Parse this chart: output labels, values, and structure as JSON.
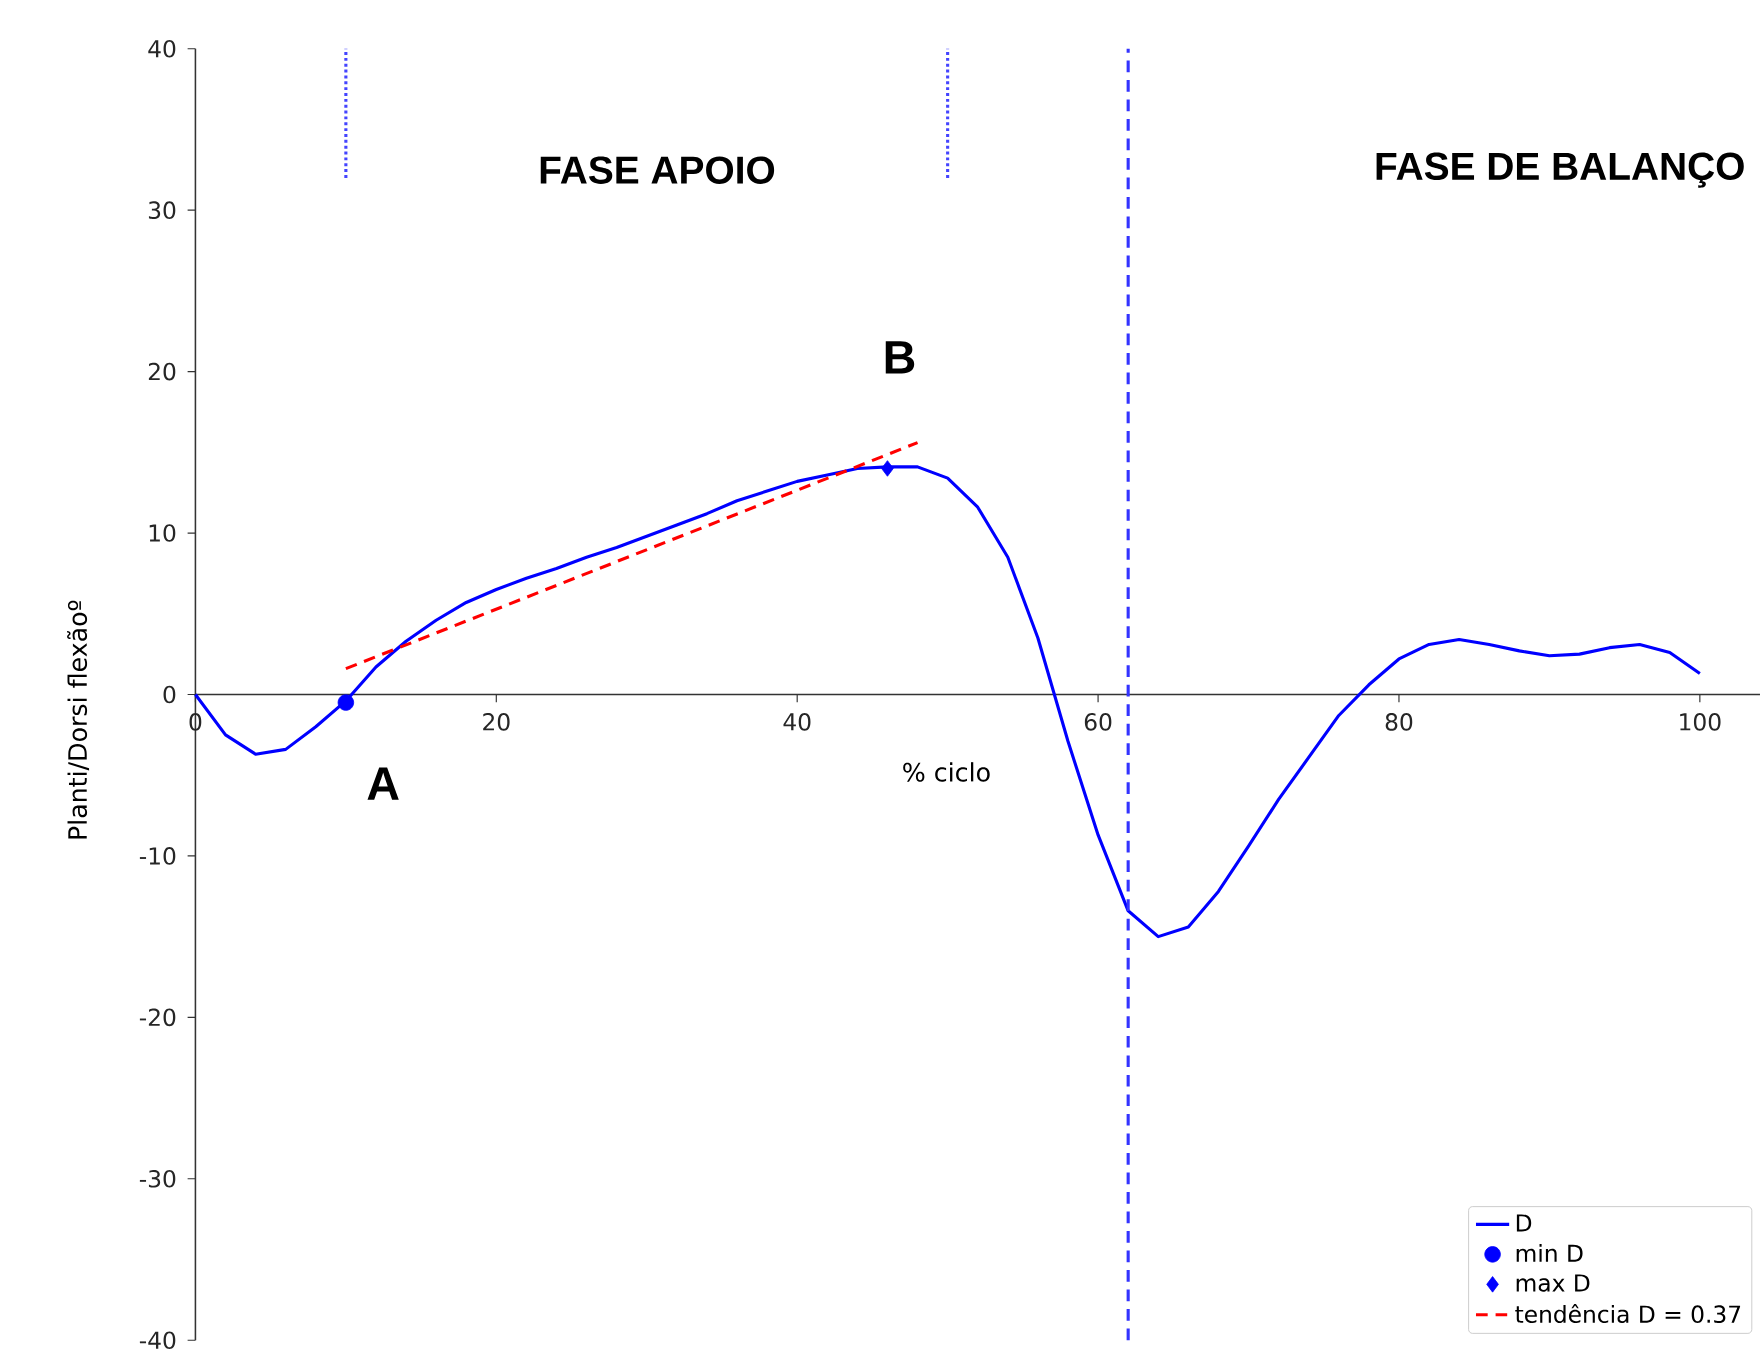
{
  "chart_data": {
    "type": "line",
    "xlabel": "% ciclo",
    "ylabel": "Planti/Dorsi flexãoº",
    "xlim": [
      0,
      104
    ],
    "ylim": [
      -40,
      40
    ],
    "xticks": [
      0,
      20,
      40,
      60,
      80,
      100
    ],
    "yticks": [
      -40,
      -30,
      -20,
      -10,
      0,
      10,
      20,
      30,
      40
    ],
    "legend": "bottom right",
    "grid": false,
    "series": [
      {
        "name": "D",
        "color": "#0000ff",
        "marker": "none",
        "line_style": "solid",
        "x": [
          0,
          2,
          4,
          6,
          8,
          10,
          12,
          14,
          16,
          18,
          20,
          22,
          24,
          26,
          28,
          30,
          32,
          34,
          36,
          38,
          40,
          42,
          44,
          46,
          48,
          50,
          52,
          54,
          56,
          58,
          60,
          62,
          64,
          66,
          68,
          70,
          72,
          74,
          76,
          78,
          80,
          82,
          84,
          86,
          88,
          90,
          92,
          94,
          96,
          98,
          100
        ],
        "values": [
          0,
          -2.5,
          -3.7,
          -3.4,
          -2.0,
          -0.4,
          1.7,
          3.3,
          4.6,
          5.7,
          6.5,
          7.2,
          7.8,
          8.5,
          9.1,
          9.8,
          10.5,
          11.2,
          12.0,
          12.6,
          13.2,
          13.6,
          14.0,
          14.1,
          14.1,
          13.4,
          11.6,
          8.5,
          3.5,
          -2.9,
          -8.7,
          -13.4,
          -15.0,
          -14.4,
          -12.2,
          -9.4,
          -6.5,
          -3.9,
          -1.3,
          0.6,
          2.2,
          3.1,
          3.4,
          3.1,
          2.7,
          2.4,
          2.5,
          2.9,
          3.1,
          2.6,
          1.3
        ]
      },
      {
        "name": "min D",
        "type": "scatter",
        "color": "#0000ff",
        "marker": "circle",
        "x": [
          10
        ],
        "values": [
          -0.5
        ]
      },
      {
        "name": "max D",
        "type": "scatter",
        "color": "#0000ff",
        "marker": "diamond",
        "x": [
          46
        ],
        "values": [
          14.0
        ]
      },
      {
        "name": "tendência D = 0.37",
        "color": "#ff0000",
        "marker": "none",
        "line_style": "dashed",
        "x": [
          10,
          48
        ],
        "values": [
          1.6,
          15.6
        ]
      },
      {
        "color": "#4444ff",
        "marker": "none",
        "line_style": "dotted",
        "x": [
          10,
          10
        ],
        "values": [
          32,
          40
        ]
      },
      {
        "color": "#4444ff",
        "marker": "none",
        "line_style": "dotted",
        "x": [
          50,
          50
        ],
        "values": [
          32,
          40
        ]
      }
    ],
    "ref_lines": [
      {
        "axis": "x",
        "value": 62,
        "color": "#3333ff",
        "line_style": "dashed"
      }
    ],
    "annotations": [
      "FASE APOIO",
      "FASE DE BALANÇO",
      "A",
      "B"
    ]
  }
}
